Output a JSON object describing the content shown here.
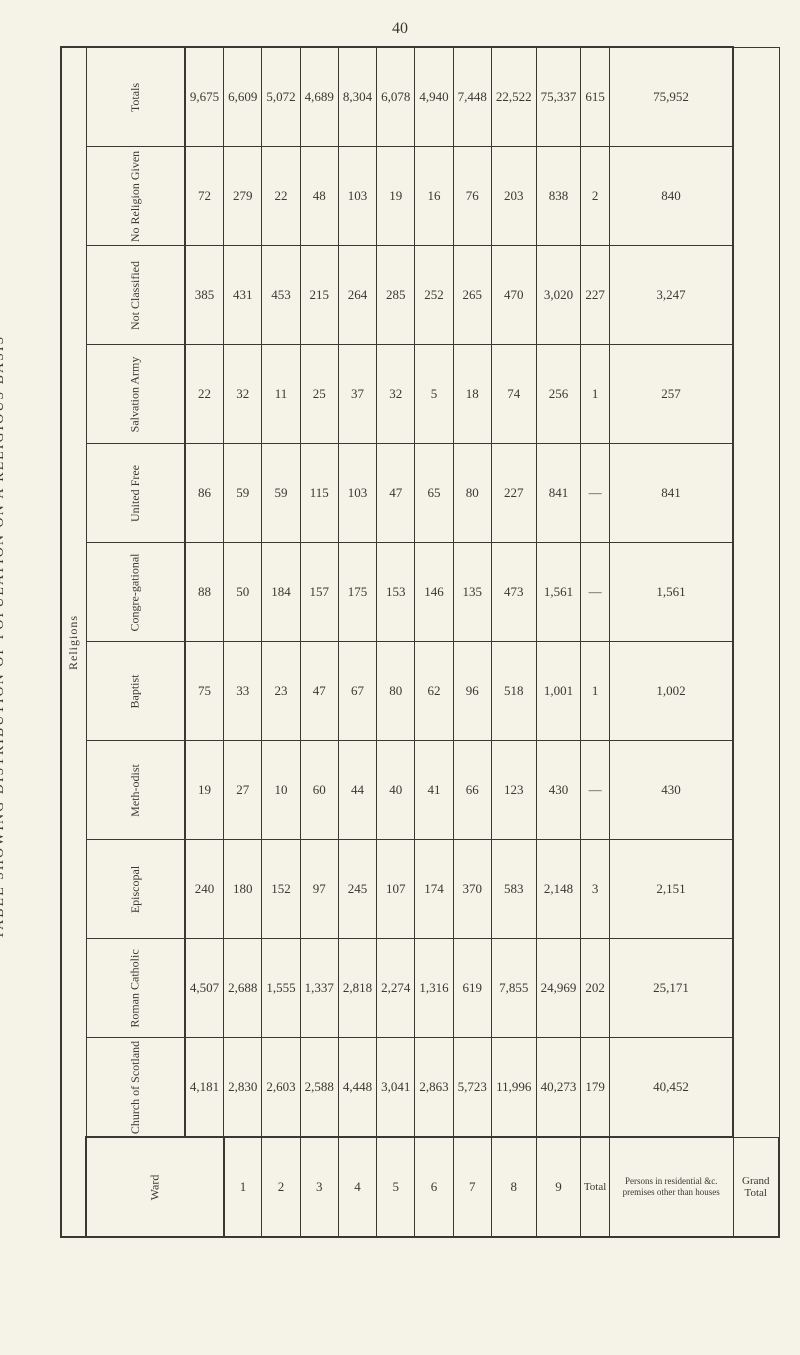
{
  "page_number": "40",
  "main_title": "TABLE SHOWING DISTRIBUTION OF POPULATION ON A RELIGIOUS BASIS",
  "section_label": "Religions",
  "ward_label": "Ward",
  "totals_label": "Totals",
  "column_headers": {
    "church_scotland": "Church of Scotland",
    "roman_catholic": "Roman Catholic",
    "episcopal": "Episcopal",
    "methodist": "Meth-odist",
    "baptist": "Baptist",
    "congregational": "Congre-gational",
    "united_free": "United Free",
    "salvation_army": "Salvation Army",
    "not_classified": "Not Classified",
    "no_religion": "No Religion Given"
  },
  "row_labels": {
    "total": "Total",
    "persons_in": "Persons in residential &c. premises other than houses",
    "grand_total": "Grand Total"
  },
  "wards": [
    "1",
    "2",
    "3",
    "4",
    "5",
    "6",
    "7",
    "8",
    "9"
  ],
  "data": {
    "church_scotland": [
      "4,181",
      "2,830",
      "2,603",
      "2,588",
      "4,448",
      "3,041",
      "2,863",
      "5,723",
      "11,996",
      "40,273",
      "179",
      "40,452"
    ],
    "roman_catholic": [
      "4,507",
      "2,688",
      "1,555",
      "1,337",
      "2,818",
      "2,274",
      "1,316",
      "619",
      "7,855",
      "24,969",
      "202",
      "25,171"
    ],
    "episcopal": [
      "240",
      "180",
      "152",
      "97",
      "245",
      "107",
      "174",
      "370",
      "583",
      "2,148",
      "3",
      "2,151"
    ],
    "methodist": [
      "19",
      "27",
      "10",
      "60",
      "44",
      "40",
      "41",
      "66",
      "123",
      "430",
      "—",
      "430"
    ],
    "baptist": [
      "75",
      "33",
      "23",
      "47",
      "67",
      "80",
      "62",
      "96",
      "518",
      "1,001",
      "1",
      "1,002"
    ],
    "congregational": [
      "88",
      "50",
      "184",
      "157",
      "175",
      "153",
      "146",
      "135",
      "473",
      "1,561",
      "—",
      "1,561"
    ],
    "united_free": [
      "86",
      "59",
      "59",
      "115",
      "103",
      "47",
      "65",
      "80",
      "227",
      "841",
      "—",
      "841"
    ],
    "salvation_army": [
      "22",
      "32",
      "11",
      "25",
      "37",
      "32",
      "5",
      "18",
      "74",
      "256",
      "1",
      "257"
    ],
    "not_classified": [
      "385",
      "431",
      "453",
      "215",
      "264",
      "285",
      "252",
      "265",
      "470",
      "3,020",
      "227",
      "3,247"
    ],
    "no_religion": [
      "72",
      "279",
      "22",
      "48",
      "103",
      "19",
      "16",
      "76",
      "203",
      "838",
      "2",
      "840"
    ],
    "totals": [
      "9,675",
      "6,609",
      "5,072",
      "4,689",
      "8,304",
      "6,078",
      "4,940",
      "7,448",
      "22,522",
      "75,337",
      "615",
      "75,952"
    ]
  },
  "styling": {
    "background_color": "#f5f2e8",
    "border_color": "#3a3832",
    "text_color": "#3a3832",
    "font_family": "Times New Roman"
  }
}
